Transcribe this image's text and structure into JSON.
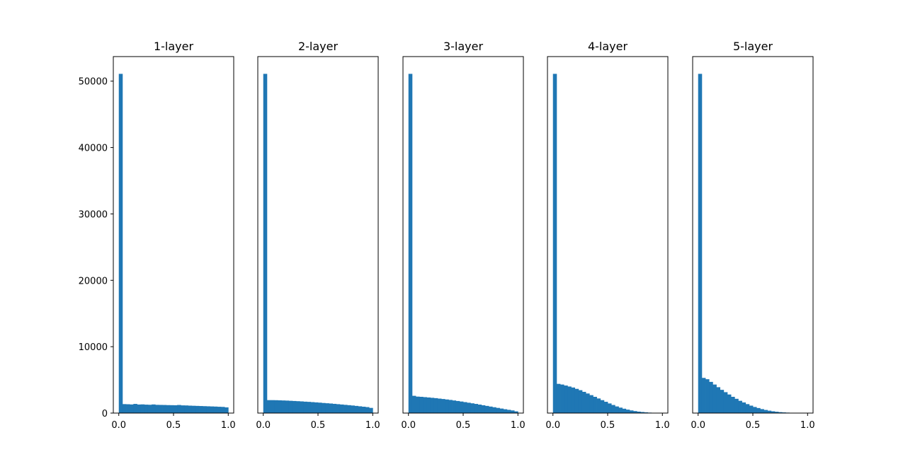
{
  "colors": {
    "bar": "#1f77b4",
    "axes": "#000000",
    "background": "#ffffff"
  },
  "chart_data": [
    {
      "type": "bar",
      "title": "1-layer",
      "xlabel": "",
      "ylabel": "",
      "xlim": [
        -0.05,
        1.05
      ],
      "ylim": [
        0,
        53700
      ],
      "xticks": [
        "0.0",
        "0.5",
        "1.0"
      ],
      "yticks": [
        "0",
        "10000",
        "20000",
        "30000",
        "40000",
        "50000"
      ],
      "grid": false,
      "bins": 30,
      "bin_range": [
        0,
        1
      ],
      "values": [
        51100,
        1350,
        1330,
        1300,
        1380,
        1290,
        1310,
        1270,
        1250,
        1300,
        1240,
        1230,
        1220,
        1200,
        1190,
        1180,
        1220,
        1160,
        1150,
        1120,
        1100,
        1080,
        1060,
        1040,
        1020,
        1000,
        980,
        950,
        930,
        860
      ]
    },
    {
      "type": "bar",
      "title": "2-layer",
      "xlabel": "",
      "ylabel": "",
      "xlim": [
        -0.05,
        1.05
      ],
      "ylim": [
        0,
        53700
      ],
      "xticks": [
        "0.0",
        "0.5",
        "1.0"
      ],
      "yticks": [],
      "grid": false,
      "bins": 30,
      "bin_range": [
        0,
        1
      ],
      "values": [
        51100,
        1950,
        1950,
        1940,
        1920,
        1900,
        1880,
        1850,
        1820,
        1790,
        1760,
        1720,
        1690,
        1650,
        1610,
        1570,
        1520,
        1480,
        1440,
        1390,
        1340,
        1290,
        1240,
        1190,
        1140,
        1080,
        1020,
        960,
        900,
        780
      ]
    },
    {
      "type": "bar",
      "title": "3-layer",
      "xlabel": "",
      "ylabel": "",
      "xlim": [
        -0.05,
        1.05
      ],
      "ylim": [
        0,
        53700
      ],
      "xticks": [
        "0.0",
        "0.5",
        "1.0"
      ],
      "yticks": [],
      "grid": false,
      "bins": 30,
      "bin_range": [
        0,
        1
      ],
      "values": [
        51100,
        2600,
        2480,
        2450,
        2400,
        2350,
        2300,
        2250,
        2180,
        2120,
        2050,
        1980,
        1900,
        1820,
        1740,
        1650,
        1560,
        1470,
        1380,
        1280,
        1180,
        1080,
        980,
        880,
        780,
        680,
        580,
        490,
        400,
        260
      ]
    },
    {
      "type": "bar",
      "title": "4-layer",
      "xlabel": "",
      "ylabel": "",
      "xlim": [
        -0.05,
        1.05
      ],
      "ylim": [
        0,
        53700
      ],
      "xticks": [
        "0.0",
        "0.5",
        "1.0"
      ],
      "yticks": [],
      "grid": false,
      "bins": 30,
      "bin_range": [
        0,
        1
      ],
      "values": [
        51100,
        4400,
        4300,
        4150,
        4000,
        3850,
        3650,
        3450,
        3200,
        2950,
        2700,
        2450,
        2200,
        1950,
        1700,
        1450,
        1220,
        1000,
        820,
        660,
        520,
        400,
        300,
        220,
        160,
        110,
        70,
        40,
        20,
        10
      ]
    },
    {
      "type": "bar",
      "title": "5-layer",
      "xlabel": "",
      "ylabel": "",
      "xlim": [
        -0.05,
        1.05
      ],
      "ylim": [
        0,
        53700
      ],
      "xticks": [
        "0.0",
        "0.5",
        "1.0"
      ],
      "yticks": [],
      "grid": false,
      "bins": 30,
      "bin_range": [
        0,
        1
      ],
      "values": [
        51100,
        5300,
        5100,
        4700,
        4300,
        3900,
        3500,
        3150,
        2800,
        2450,
        2150,
        1850,
        1600,
        1350,
        1120,
        920,
        760,
        600,
        470,
        360,
        270,
        200,
        140,
        100,
        70,
        45,
        30,
        15,
        8,
        3
      ]
    }
  ]
}
